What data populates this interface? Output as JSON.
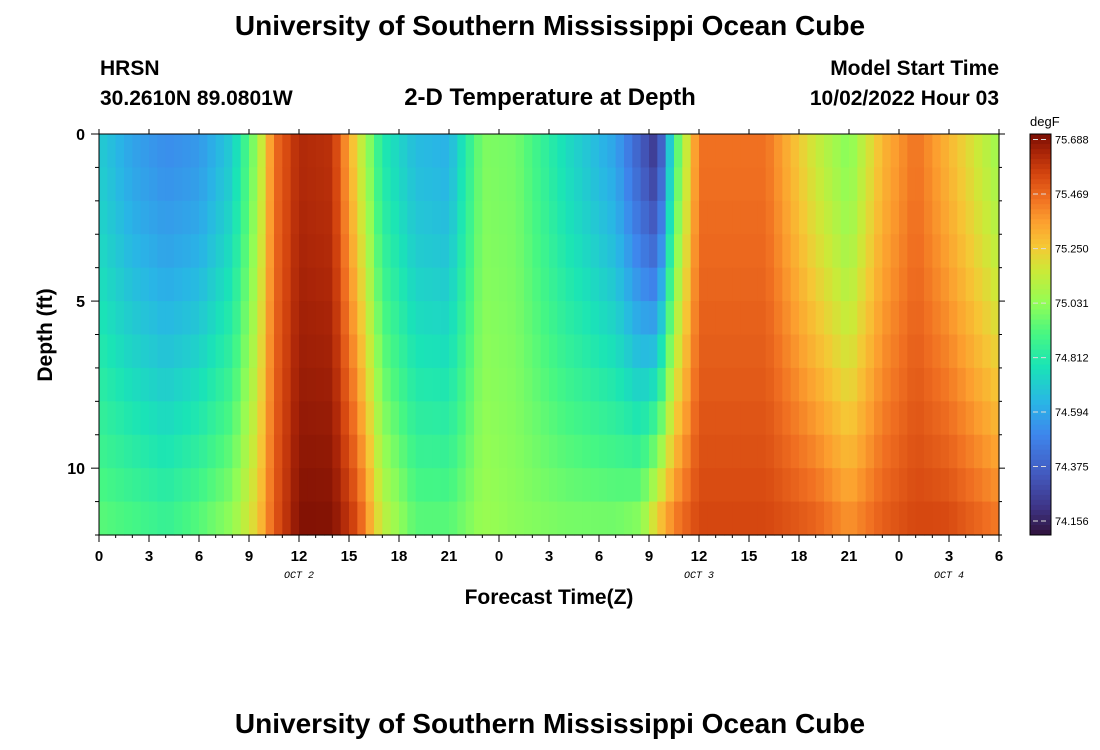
{
  "page": {
    "title": "University of Southern Mississippi Ocean Cube",
    "footer_title": "University of Southern Mississippi Ocean Cube"
  },
  "header": {
    "station": "HRSN",
    "coords": "30.2610N  89.0801W",
    "subtitle": "2-D Temperature at Depth",
    "model_label": "Model Start Time",
    "model_time": "10/02/2022 Hour 03"
  },
  "chart_data": {
    "type": "heatmap",
    "title": "2-D Temperature at Depth",
    "xlabel": "Forecast Time(Z)",
    "ylabel": "Depth (ft)",
    "x_ticks": [
      "0",
      "3",
      "6",
      "9",
      "12",
      "15",
      "18",
      "21",
      "0",
      "3",
      "6",
      "9",
      "12",
      "15",
      "18",
      "21",
      "0",
      "3",
      "6"
    ],
    "x_range": [
      0,
      54
    ],
    "x_unit": "hours since 10/02/2022 00Z",
    "date_labels": [
      {
        "text": "OCT 2",
        "hour": 12
      },
      {
        "text": "OCT 3",
        "hour": 36
      },
      {
        "text": "OCT 4",
        "hour": 51
      }
    ],
    "y_ticks": [
      {
        "value": 0,
        "label": "0"
      },
      {
        "value": 5,
        "label": "5"
      },
      {
        "value": 10,
        "label": "10"
      }
    ],
    "y_range": [
      0,
      12
    ],
    "colorbar": {
      "unit": "degF",
      "min": 74.1,
      "max": 75.71,
      "tick_values": [
        75.688,
        75.469,
        75.25,
        75.031,
        74.812,
        74.594,
        74.375,
        74.156
      ]
    },
    "depth_levels": [
      0.5,
      1.5,
      2.5,
      3.5,
      4.5,
      5.5,
      6.5,
      7.5,
      8.5,
      9.5,
      10.5,
      11.5
    ],
    "time_profiles_degF": [
      {
        "hour": 0,
        "shallow": 74.7,
        "deep": 74.95
      },
      {
        "hour": 2,
        "shallow": 74.58,
        "deep": 74.92
      },
      {
        "hour": 4,
        "shallow": 74.52,
        "deep": 74.88
      },
      {
        "hour": 6,
        "shallow": 74.55,
        "deep": 74.95
      },
      {
        "hour": 8,
        "shallow": 74.7,
        "deep": 75.05
      },
      {
        "hour": 9.5,
        "shallow": 75.05,
        "deep": 75.25
      },
      {
        "hour": 10.5,
        "shallow": 75.45,
        "deep": 75.5
      },
      {
        "hour": 12,
        "shallow": 75.62,
        "deep": 75.7
      },
      {
        "hour": 14,
        "shallow": 75.6,
        "deep": 75.7
      },
      {
        "hour": 15.5,
        "shallow": 75.2,
        "deep": 75.55
      },
      {
        "hour": 17,
        "shallow": 74.8,
        "deep": 75.15
      },
      {
        "hour": 19,
        "shallow": 74.65,
        "deep": 74.95
      },
      {
        "hour": 21,
        "shallow": 74.62,
        "deep": 74.95
      },
      {
        "hour": 23,
        "shallow": 75.0,
        "deep": 75.05
      },
      {
        "hour": 25,
        "shallow": 74.98,
        "deep": 75.02
      },
      {
        "hour": 28,
        "shallow": 74.75,
        "deep": 75.0
      },
      {
        "hour": 31,
        "shallow": 74.58,
        "deep": 75.0
      },
      {
        "hour": 32.5,
        "shallow": 74.35,
        "deep": 75.05
      },
      {
        "hour": 33.5,
        "shallow": 74.2,
        "deep": 75.3
      },
      {
        "hour": 34.5,
        "shallow": 74.85,
        "deep": 75.45
      },
      {
        "hour": 36,
        "shallow": 75.45,
        "deep": 75.55
      },
      {
        "hour": 40,
        "shallow": 75.45,
        "deep": 75.55
      },
      {
        "hour": 43,
        "shallow": 75.15,
        "deep": 75.5
      },
      {
        "hour": 45,
        "shallow": 75.0,
        "deep": 75.4
      },
      {
        "hour": 47,
        "shallow": 75.3,
        "deep": 75.5
      },
      {
        "hour": 49,
        "shallow": 75.45,
        "deep": 75.55
      },
      {
        "hour": 51,
        "shallow": 75.3,
        "deep": 75.55
      },
      {
        "hour": 54,
        "shallow": 75.05,
        "deep": 75.45
      }
    ]
  }
}
